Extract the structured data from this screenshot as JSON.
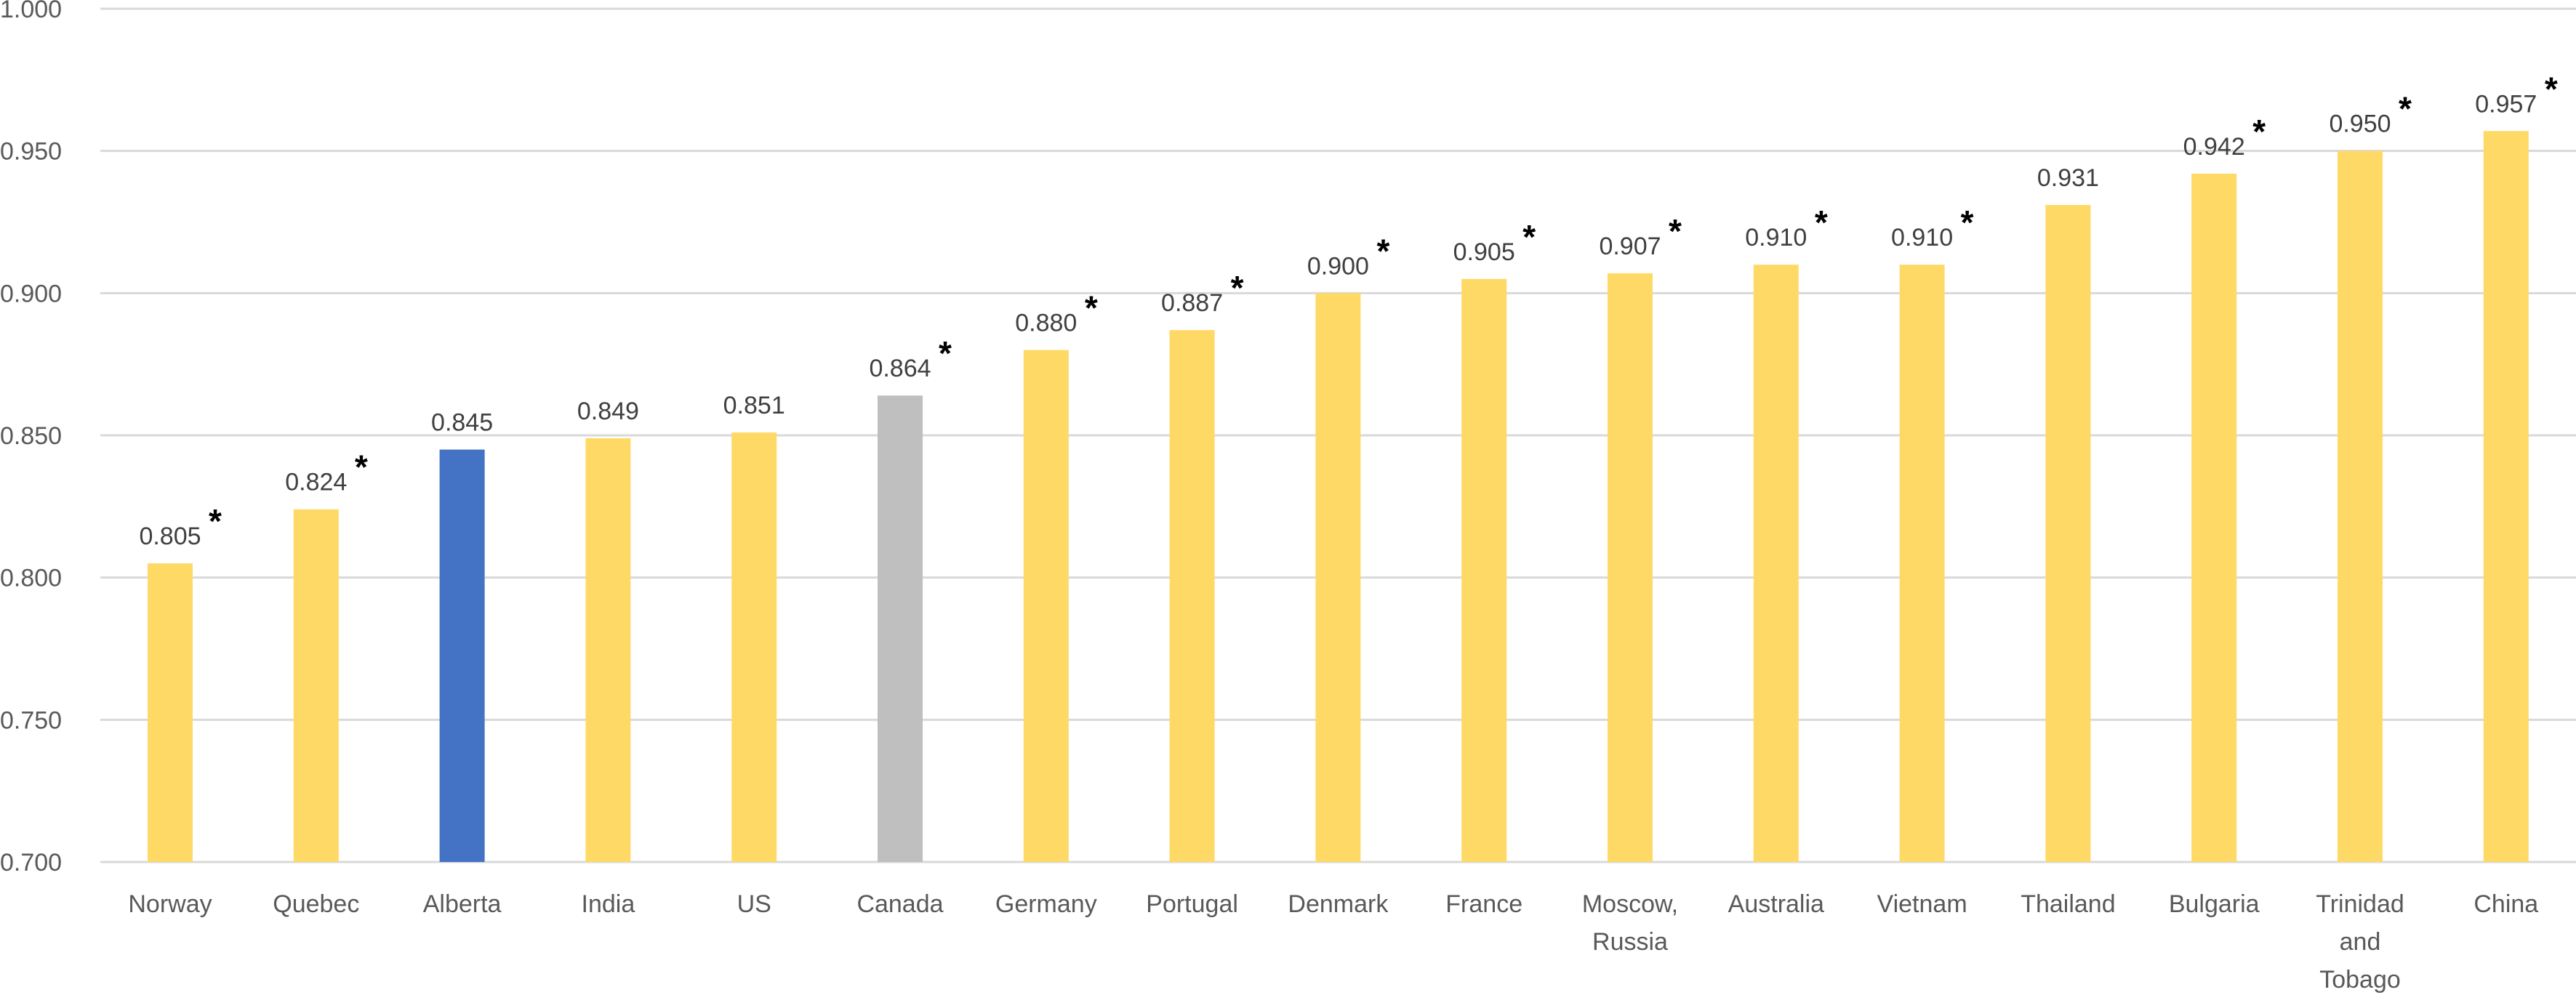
{
  "chart_data": {
    "type": "bar",
    "title": "",
    "xlabel": "",
    "ylabel": "",
    "ylim": [
      0.7,
      1.0
    ],
    "yticks": [
      "0.700",
      "0.750",
      "0.800",
      "0.850",
      "0.900",
      "0.950",
      "1.000"
    ],
    "ytick_values": [
      0.7,
      0.75,
      0.8,
      0.85,
      0.9,
      0.95,
      1.0
    ],
    "grid": true,
    "legend": "none",
    "categories": [
      [
        "Norway"
      ],
      [
        "Quebec"
      ],
      [
        "Alberta"
      ],
      [
        "India"
      ],
      [
        "US"
      ],
      [
        "Canada"
      ],
      [
        "Germany"
      ],
      [
        "Portugal"
      ],
      [
        "Denmark"
      ],
      [
        "France"
      ],
      [
        "Moscow,",
        "Russia"
      ],
      [
        "Australia"
      ],
      [
        "Vietnam"
      ],
      [
        "Thailand"
      ],
      [
        "Bulgaria"
      ],
      [
        "Trinidad",
        "and",
        "Tobago"
      ],
      [
        "China"
      ]
    ],
    "values": [
      0.805,
      0.824,
      0.845,
      0.849,
      0.851,
      0.864,
      0.88,
      0.887,
      0.9,
      0.905,
      0.907,
      0.91,
      0.91,
      0.931,
      0.942,
      0.95,
      0.957
    ],
    "data_labels": [
      "0.805",
      "0.824",
      "0.845",
      "0.849",
      "0.851",
      "0.864",
      "0.880",
      "0.887",
      "0.900",
      "0.905",
      "0.907",
      "0.910",
      "0.910",
      "0.931",
      "0.942",
      "0.950",
      "0.957"
    ],
    "significance_marker": "*",
    "significant": [
      true,
      true,
      false,
      false,
      false,
      true,
      true,
      true,
      true,
      true,
      true,
      true,
      true,
      false,
      true,
      true,
      true
    ],
    "colors": {
      "default": "#FFD966",
      "highlight": "#4472C4",
      "reference": "#BFBFBF",
      "gridline": "#D9D9D9"
    },
    "bar_colors": [
      "default",
      "default",
      "highlight",
      "default",
      "default",
      "reference",
      "default",
      "default",
      "default",
      "default",
      "default",
      "default",
      "default",
      "default",
      "default",
      "default",
      "default"
    ]
  }
}
